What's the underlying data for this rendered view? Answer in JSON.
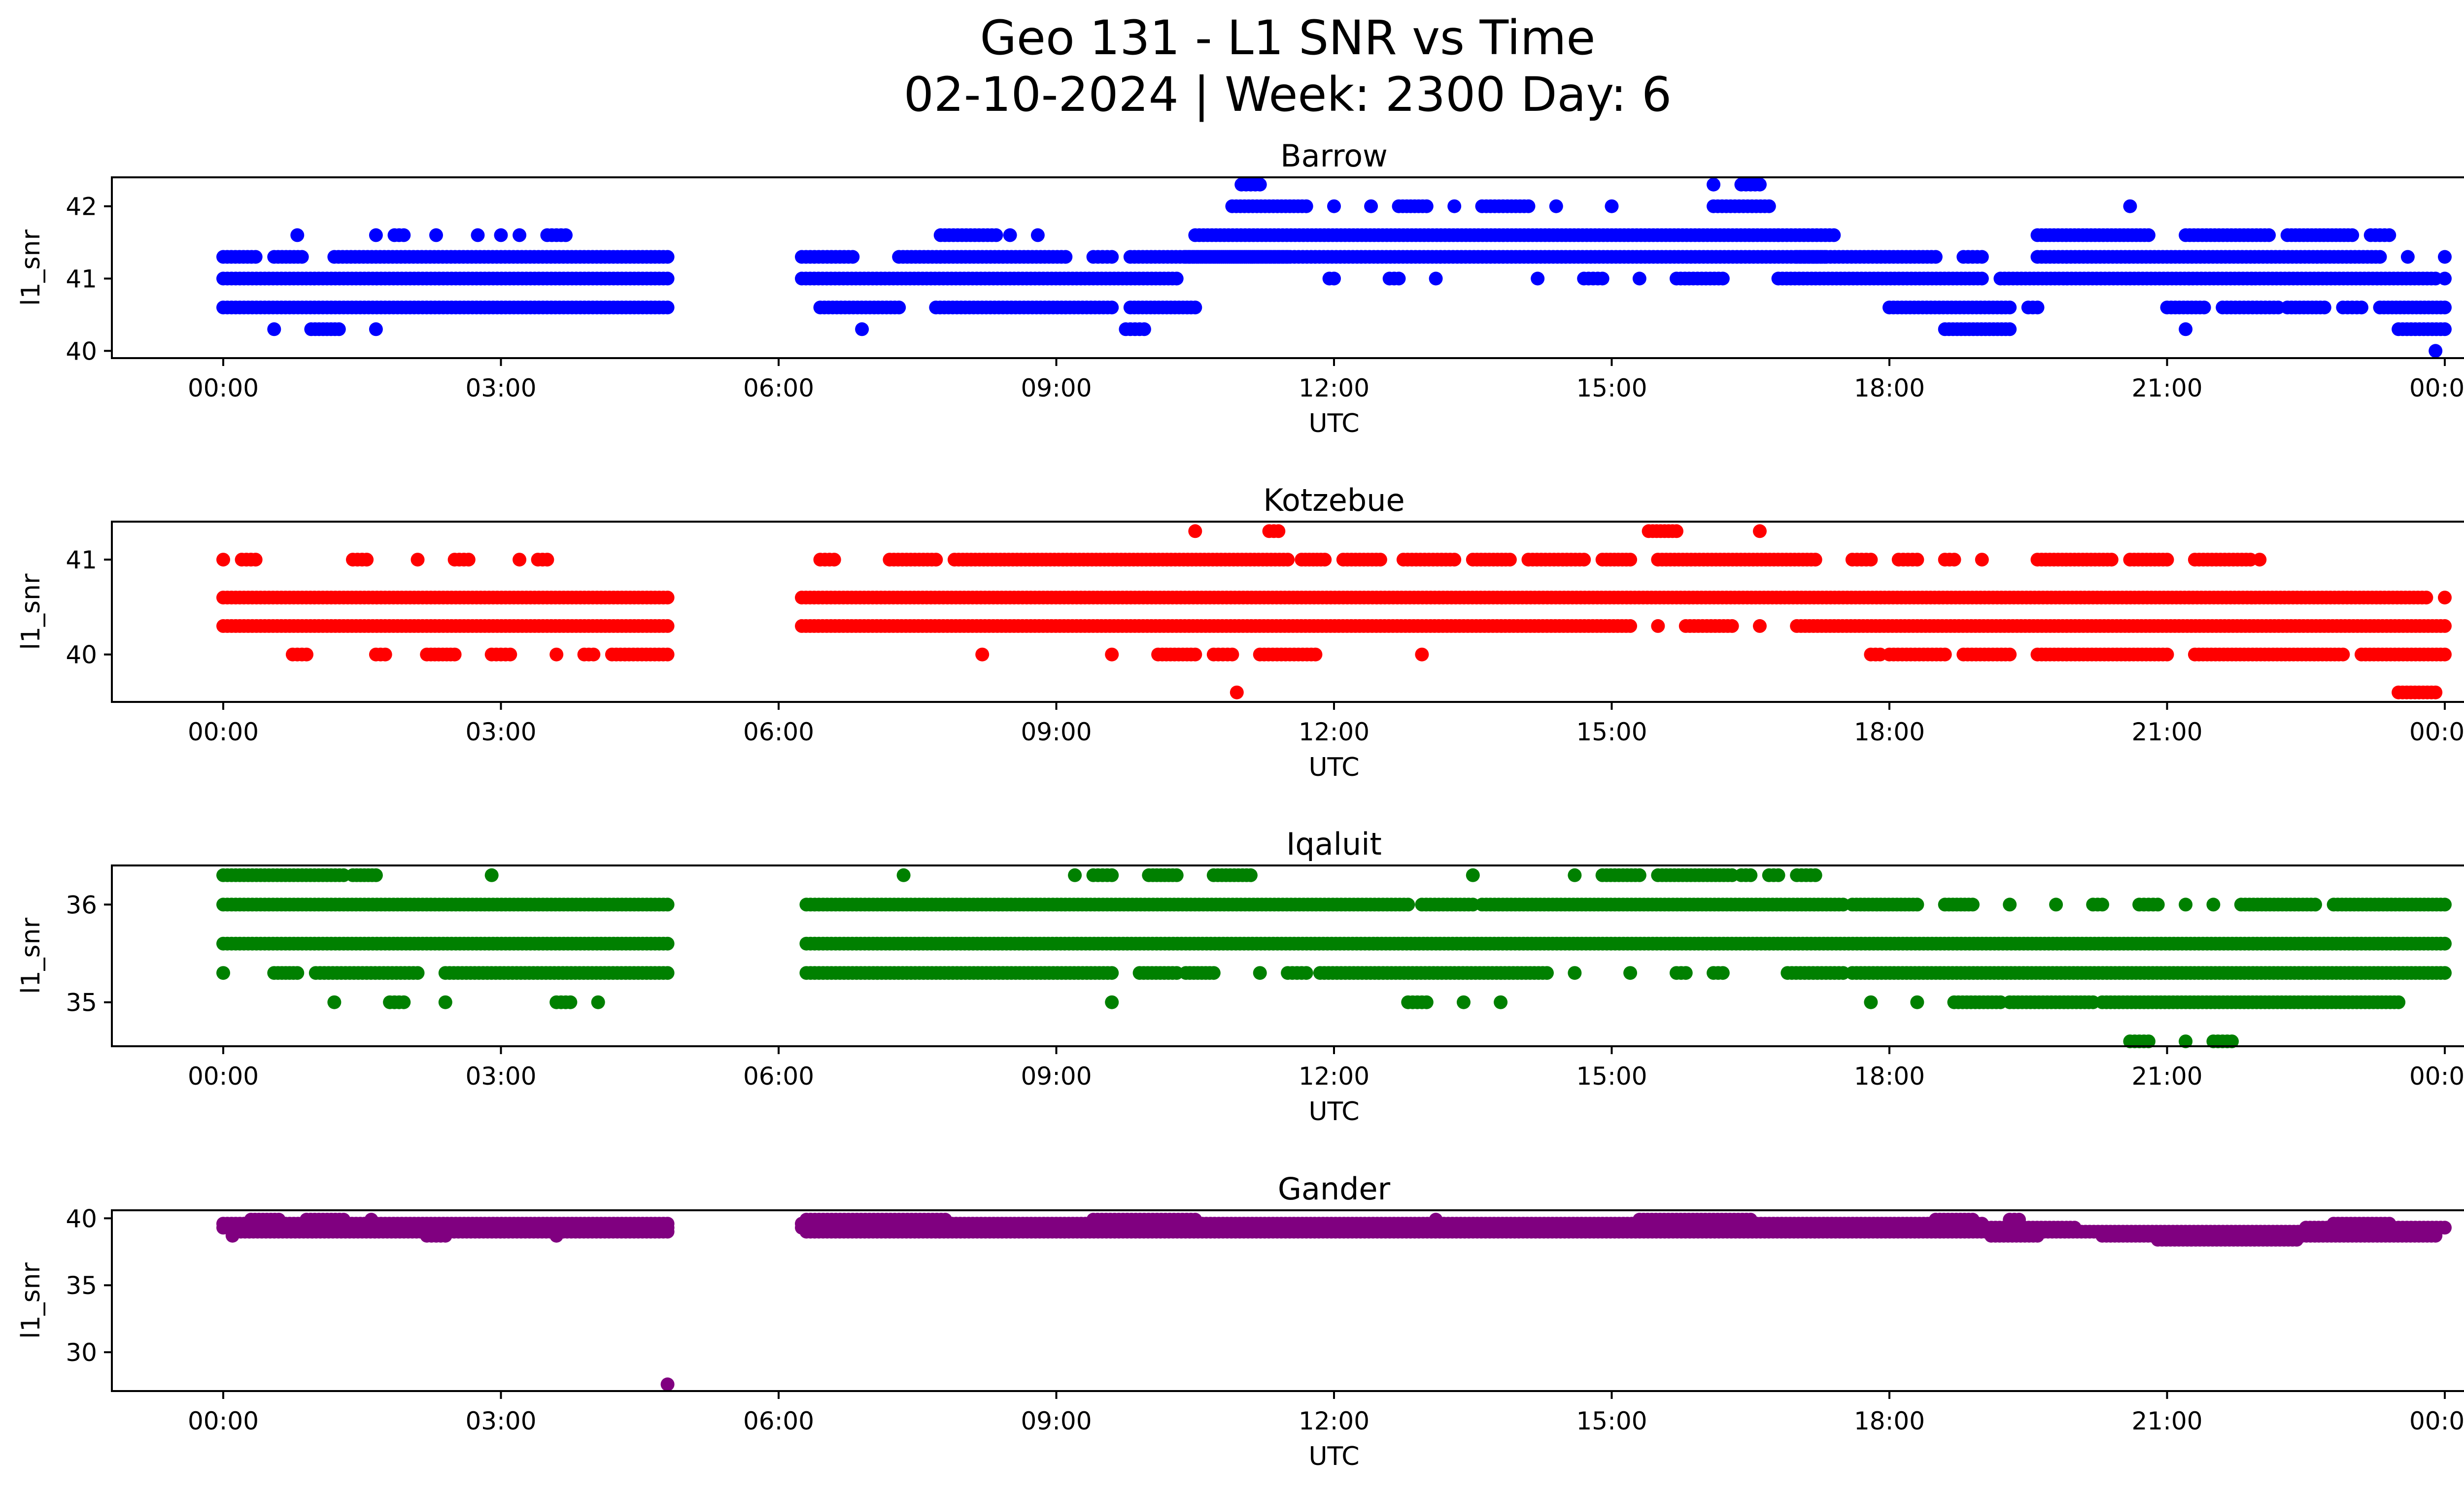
{
  "figure": {
    "title_line1": "Geo 131 - L1 SNR vs Time",
    "title_line2": "02-10-2024 | Week: 2300 Day: 6"
  },
  "chart_data": [
    {
      "type": "scatter",
      "title": "Barrow",
      "xlabel": "UTC",
      "ylabel": "l1_snr",
      "color": "#0000ff",
      "x_unit": "hours UTC",
      "xlim": [
        -1.2,
        25.2
      ],
      "ylim": [
        39.9,
        42.4
      ],
      "xticks": [
        0,
        3,
        6,
        9,
        12,
        15,
        18,
        21,
        24
      ],
      "xtick_labels": [
        "00:00",
        "03:00",
        "06:00",
        "09:00",
        "12:00",
        "15:00",
        "18:00",
        "21:00",
        "00:00"
      ],
      "yticks": [
        40,
        41,
        42
      ],
      "ytick_labels": [
        "40",
        "41",
        "42"
      ],
      "grid": false,
      "runs": [
        [
          41.0,
          0.0,
          4.8
        ],
        [
          40.6,
          0.0,
          4.8
        ],
        [
          41.3,
          0.0,
          0.35
        ],
        [
          41.3,
          0.55,
          0.85
        ],
        [
          41.3,
          1.2,
          4.8
        ],
        [
          40.3,
          0.55,
          0.55
        ],
        [
          40.3,
          0.95,
          1.25
        ],
        [
          40.3,
          1.65,
          1.65
        ],
        [
          41.6,
          0.8,
          0.8
        ],
        [
          41.6,
          1.65,
          1.65
        ],
        [
          41.6,
          1.85,
          1.95
        ],
        [
          41.6,
          2.3,
          2.3
        ],
        [
          41.6,
          2.75,
          2.75
        ],
        [
          41.6,
          3.0,
          3.0
        ],
        [
          41.6,
          3.2,
          3.2
        ],
        [
          41.6,
          3.5,
          3.7
        ],
        [
          41.3,
          6.25,
          6.8
        ],
        [
          41.0,
          6.25,
          10.3
        ],
        [
          40.6,
          6.45,
          7.3
        ],
        [
          40.6,
          7.7,
          9.6
        ],
        [
          40.6,
          9.8,
          10.5
        ],
        [
          41.3,
          7.3,
          9.1
        ],
        [
          41.3,
          9.4,
          9.6
        ],
        [
          41.3,
          9.8,
          11.5
        ],
        [
          40.3,
          6.9,
          6.9
        ],
        [
          40.3,
          9.75,
          9.95
        ],
        [
          41.6,
          7.75,
          8.35
        ],
        [
          41.6,
          8.5,
          8.5
        ],
        [
          41.6,
          8.8,
          8.8
        ],
        [
          41.6,
          10.5,
          16.8
        ],
        [
          41.3,
          10.4,
          17.3
        ],
        [
          41.0,
          11.95,
          12.0
        ],
        [
          41.0,
          12.6,
          12.7
        ],
        [
          41.0,
          13.1,
          13.1
        ],
        [
          41.0,
          14.2,
          14.2
        ],
        [
          41.0,
          14.7,
          14.9
        ],
        [
          41.0,
          15.3,
          15.3
        ],
        [
          41.0,
          15.7,
          16.2
        ],
        [
          42.0,
          10.9,
          11.7
        ],
        [
          42.0,
          12.0,
          12.0
        ],
        [
          42.0,
          12.4,
          12.4
        ],
        [
          42.0,
          12.7,
          13.0
        ],
        [
          42.0,
          13.3,
          13.3
        ],
        [
          42.0,
          13.6,
          14.1
        ],
        [
          42.0,
          14.4,
          14.4
        ],
        [
          42.0,
          15.0,
          15.0
        ],
        [
          42.0,
          16.1,
          16.7
        ],
        [
          42.3,
          11.0,
          11.2
        ],
        [
          42.3,
          16.1,
          16.1
        ],
        [
          42.3,
          16.4,
          16.6
        ],
        [
          41.6,
          16.8,
          17.4
        ],
        [
          41.0,
          16.8,
          19.0
        ],
        [
          41.3,
          17.0,
          18.5
        ],
        [
          41.3,
          18.8,
          19.0
        ],
        [
          40.6,
          18.0,
          19.3
        ],
        [
          40.6,
          19.5,
          19.6
        ],
        [
          40.3,
          18.6,
          19.3
        ],
        [
          41.0,
          19.2,
          23.9
        ],
        [
          41.3,
          19.6,
          23.3
        ],
        [
          41.3,
          23.6,
          23.6
        ],
        [
          41.3,
          24.0,
          24.0
        ],
        [
          41.6,
          19.6,
          20.8
        ],
        [
          41.6,
          21.2,
          22.1
        ],
        [
          41.6,
          22.3,
          23.0
        ],
        [
          41.6,
          23.2,
          23.4
        ],
        [
          40.6,
          21.0,
          21.4
        ],
        [
          40.6,
          21.6,
          22.2
        ],
        [
          40.6,
          22.3,
          22.7
        ],
        [
          40.6,
          22.9,
          23.1
        ],
        [
          40.6,
          23.3,
          24.0
        ],
        [
          40.3,
          21.2,
          21.2
        ],
        [
          40.3,
          23.5,
          24.0
        ],
        [
          42.0,
          20.6,
          20.6
        ],
        [
          41.0,
          24.0,
          24.0
        ],
        [
          40.0,
          23.9,
          23.9
        ]
      ]
    },
    {
      "type": "scatter",
      "title": "Kotzebue",
      "xlabel": "UTC",
      "ylabel": "l1_snr",
      "color": "#ff0000",
      "x_unit": "hours UTC",
      "xlim": [
        -1.2,
        25.2
      ],
      "ylim": [
        39.5,
        41.4
      ],
      "xticks": [
        0,
        3,
        6,
        9,
        12,
        15,
        18,
        21,
        24
      ],
      "xtick_labels": [
        "00:00",
        "03:00",
        "06:00",
        "09:00",
        "12:00",
        "15:00",
        "18:00",
        "21:00",
        "00:00"
      ],
      "yticks": [
        40,
        41
      ],
      "ytick_labels": [
        "40",
        "41"
      ],
      "grid": false,
      "runs": [
        [
          40.6,
          0.0,
          4.8
        ],
        [
          40.3,
          0.0,
          4.8
        ],
        [
          41.0,
          0.0,
          0.0
        ],
        [
          41.0,
          0.2,
          0.35
        ],
        [
          41.0,
          1.4,
          1.55
        ],
        [
          41.0,
          2.1,
          2.1
        ],
        [
          41.0,
          2.5,
          2.65
        ],
        [
          41.0,
          3.2,
          3.2
        ],
        [
          41.0,
          3.4,
          3.5
        ],
        [
          40.0,
          0.75,
          0.9
        ],
        [
          40.0,
          1.65,
          1.75
        ],
        [
          40.0,
          2.2,
          2.5
        ],
        [
          40.0,
          2.9,
          3.1
        ],
        [
          40.0,
          3.6,
          3.6
        ],
        [
          40.0,
          3.9,
          4.0
        ],
        [
          40.0,
          4.2,
          4.8
        ],
        [
          40.6,
          6.25,
          23.8
        ],
        [
          40.3,
          6.25,
          15.2
        ],
        [
          40.3,
          15.5,
          15.5
        ],
        [
          40.3,
          15.8,
          16.3
        ],
        [
          40.3,
          16.6,
          16.6
        ],
        [
          40.3,
          17.0,
          24.0
        ],
        [
          40.6,
          24.0,
          24.0
        ],
        [
          41.0,
          6.45,
          6.6
        ],
        [
          41.0,
          7.2,
          7.7
        ],
        [
          41.0,
          7.9,
          11.5
        ],
        [
          41.0,
          11.65,
          11.9
        ],
        [
          41.0,
          12.1,
          12.5
        ],
        [
          41.0,
          12.75,
          13.3
        ],
        [
          41.0,
          13.5,
          13.9
        ],
        [
          41.0,
          14.1,
          14.7
        ],
        [
          41.0,
          14.9,
          15.2
        ],
        [
          41.0,
          15.5,
          17.2
        ],
        [
          41.0,
          17.6,
          17.8
        ],
        [
          41.0,
          18.1,
          18.3
        ],
        [
          41.0,
          18.6,
          18.7
        ],
        [
          41.0,
          19.0,
          19.0
        ],
        [
          41.0,
          19.6,
          20.4
        ],
        [
          41.0,
          20.6,
          21.0
        ],
        [
          41.0,
          21.3,
          21.9
        ],
        [
          41.0,
          22.0,
          22.0
        ],
        [
          40.0,
          8.2,
          8.2
        ],
        [
          40.0,
          9.6,
          9.6
        ],
        [
          40.0,
          10.1,
          10.5
        ],
        [
          40.0,
          10.7,
          10.9
        ],
        [
          40.0,
          11.2,
          11.8
        ],
        [
          40.0,
          12.95,
          12.95
        ],
        [
          40.0,
          17.8,
          17.9
        ],
        [
          40.0,
          18.0,
          18.6
        ],
        [
          40.0,
          18.8,
          19.3
        ],
        [
          40.0,
          19.6,
          21.0
        ],
        [
          40.0,
          21.3,
          22.9
        ],
        [
          40.0,
          23.1,
          24.0
        ],
        [
          41.3,
          10.5,
          10.5
        ],
        [
          41.3,
          11.3,
          11.4
        ],
        [
          41.3,
          15.4,
          15.7
        ],
        [
          41.3,
          16.6,
          16.6
        ],
        [
          39.6,
          10.95,
          10.95
        ],
        [
          39.6,
          23.5,
          23.9
        ]
      ]
    },
    {
      "type": "scatter",
      "title": "Iqaluit",
      "xlabel": "UTC",
      "ylabel": "l1_snr",
      "color": "#008000",
      "x_unit": "hours UTC",
      "xlim": [
        -1.2,
        25.2
      ],
      "ylim": [
        34.55,
        36.4
      ],
      "xticks": [
        0,
        3,
        6,
        9,
        12,
        15,
        18,
        21,
        24
      ],
      "xtick_labels": [
        "00:00",
        "03:00",
        "06:00",
        "09:00",
        "12:00",
        "15:00",
        "18:00",
        "21:00",
        "00:00"
      ],
      "yticks": [
        35,
        36
      ],
      "ytick_labels": [
        "35",
        "36"
      ],
      "grid": false,
      "runs": [
        [
          36.0,
          0.0,
          4.8
        ],
        [
          35.6,
          0.0,
          4.8
        ],
        [
          36.3,
          0.0,
          1.3
        ],
        [
          36.3,
          1.4,
          1.65
        ],
        [
          36.3,
          2.9,
          2.9
        ],
        [
          35.3,
          0.0,
          0.0
        ],
        [
          35.3,
          0.55,
          0.8
        ],
        [
          35.3,
          1.0,
          2.1
        ],
        [
          35.3,
          2.4,
          4.8
        ],
        [
          35.0,
          1.2,
          1.2
        ],
        [
          35.0,
          1.8,
          1.95
        ],
        [
          35.0,
          2.4,
          2.4
        ],
        [
          35.0,
          3.6,
          3.75
        ],
        [
          35.0,
          4.05,
          4.05
        ],
        [
          36.0,
          6.3,
          12.8
        ],
        [
          36.0,
          12.95,
          13.5
        ],
        [
          36.0,
          13.6,
          17.5
        ],
        [
          36.0,
          17.6,
          18.3
        ],
        [
          36.0,
          18.6,
          18.9
        ],
        [
          36.0,
          19.3,
          19.3
        ],
        [
          36.0,
          19.8,
          19.8
        ],
        [
          36.0,
          20.2,
          20.3
        ],
        [
          36.0,
          20.7,
          20.9
        ],
        [
          36.0,
          21.2,
          21.2
        ],
        [
          36.0,
          21.5,
          21.5
        ],
        [
          36.0,
          21.8,
          22.6
        ],
        [
          36.0,
          22.8,
          24.0
        ],
        [
          35.6,
          6.3,
          24.0
        ],
        [
          35.3,
          6.3,
          9.6
        ],
        [
          35.3,
          9.9,
          10.3
        ],
        [
          35.3,
          10.4,
          10.7
        ],
        [
          35.3,
          11.2,
          11.2
        ],
        [
          35.3,
          11.5,
          11.7
        ],
        [
          35.3,
          11.85,
          14.3
        ],
        [
          35.3,
          14.6,
          14.6
        ],
        [
          35.3,
          15.2,
          15.2
        ],
        [
          35.3,
          15.7,
          15.8
        ],
        [
          35.3,
          16.1,
          16.2
        ],
        [
          35.3,
          16.9,
          17.5
        ],
        [
          35.3,
          17.6,
          24.0
        ],
        [
          35.0,
          9.6,
          9.6
        ],
        [
          35.0,
          12.8,
          13.0
        ],
        [
          35.0,
          13.4,
          13.4
        ],
        [
          35.0,
          13.8,
          13.8
        ],
        [
          35.0,
          17.8,
          17.8
        ],
        [
          35.0,
          18.3,
          18.3
        ],
        [
          35.0,
          18.7,
          19.2
        ],
        [
          35.0,
          19.3,
          20.2
        ],
        [
          35.0,
          20.3,
          23.5
        ],
        [
          36.3,
          7.35,
          7.35
        ],
        [
          36.3,
          9.2,
          9.2
        ],
        [
          36.3,
          9.4,
          9.6
        ],
        [
          36.3,
          10.0,
          10.3
        ],
        [
          36.3,
          10.7,
          11.1
        ],
        [
          36.3,
          13.5,
          13.5
        ],
        [
          36.3,
          14.6,
          14.6
        ],
        [
          36.3,
          14.9,
          15.3
        ],
        [
          36.3,
          15.5,
          16.3
        ],
        [
          36.3,
          16.4,
          16.5
        ],
        [
          36.3,
          16.7,
          16.8
        ],
        [
          36.3,
          17.0,
          17.2
        ],
        [
          34.6,
          20.6,
          20.8
        ],
        [
          34.6,
          21.2,
          21.2
        ],
        [
          34.6,
          21.5,
          21.7
        ]
      ]
    },
    {
      "type": "scatter",
      "title": "Gander",
      "xlabel": "UTC",
      "ylabel": "l1_snr",
      "color": "#800080",
      "x_unit": "hours UTC",
      "xlim": [
        -1.2,
        25.2
      ],
      "ylim": [
        27.1,
        40.6
      ],
      "xticks": [
        0,
        3,
        6,
        9,
        12,
        15,
        18,
        21,
        24
      ],
      "xtick_labels": [
        "00:00",
        "03:00",
        "06:00",
        "09:00",
        "12:00",
        "15:00",
        "18:00",
        "21:00",
        "00:00"
      ],
      "yticks": [
        30,
        35,
        40
      ],
      "ytick_labels": [
        "30",
        "35",
        "40"
      ],
      "grid": false,
      "runs": [
        [
          39.6,
          0.0,
          4.8
        ],
        [
          39.3,
          0.0,
          4.8
        ],
        [
          39.0,
          0.1,
          4.8
        ],
        [
          39.9,
          0.3,
          0.6
        ],
        [
          39.9,
          0.9,
          1.3
        ],
        [
          39.9,
          1.6,
          1.6
        ],
        [
          38.7,
          0.1,
          0.1
        ],
        [
          38.7,
          2.2,
          2.4
        ],
        [
          38.7,
          3.6,
          3.6
        ],
        [
          27.6,
          4.8,
          4.8
        ],
        [
          39.6,
          6.25,
          19.0
        ],
        [
          39.3,
          6.25,
          20.0
        ],
        [
          39.0,
          6.3,
          23.9
        ],
        [
          39.9,
          6.3,
          7.8
        ],
        [
          39.9,
          9.4,
          10.5
        ],
        [
          39.9,
          13.1,
          13.1
        ],
        [
          39.9,
          15.3,
          16.5
        ],
        [
          39.9,
          18.5,
          18.9
        ],
        [
          39.9,
          19.3,
          19.4
        ],
        [
          38.7,
          19.1,
          19.6
        ],
        [
          38.7,
          20.3,
          23.9
        ],
        [
          38.4,
          20.9,
          22.4
        ],
        [
          39.3,
          22.5,
          24.0
        ],
        [
          39.6,
          22.8,
          23.4
        ]
      ]
    }
  ]
}
